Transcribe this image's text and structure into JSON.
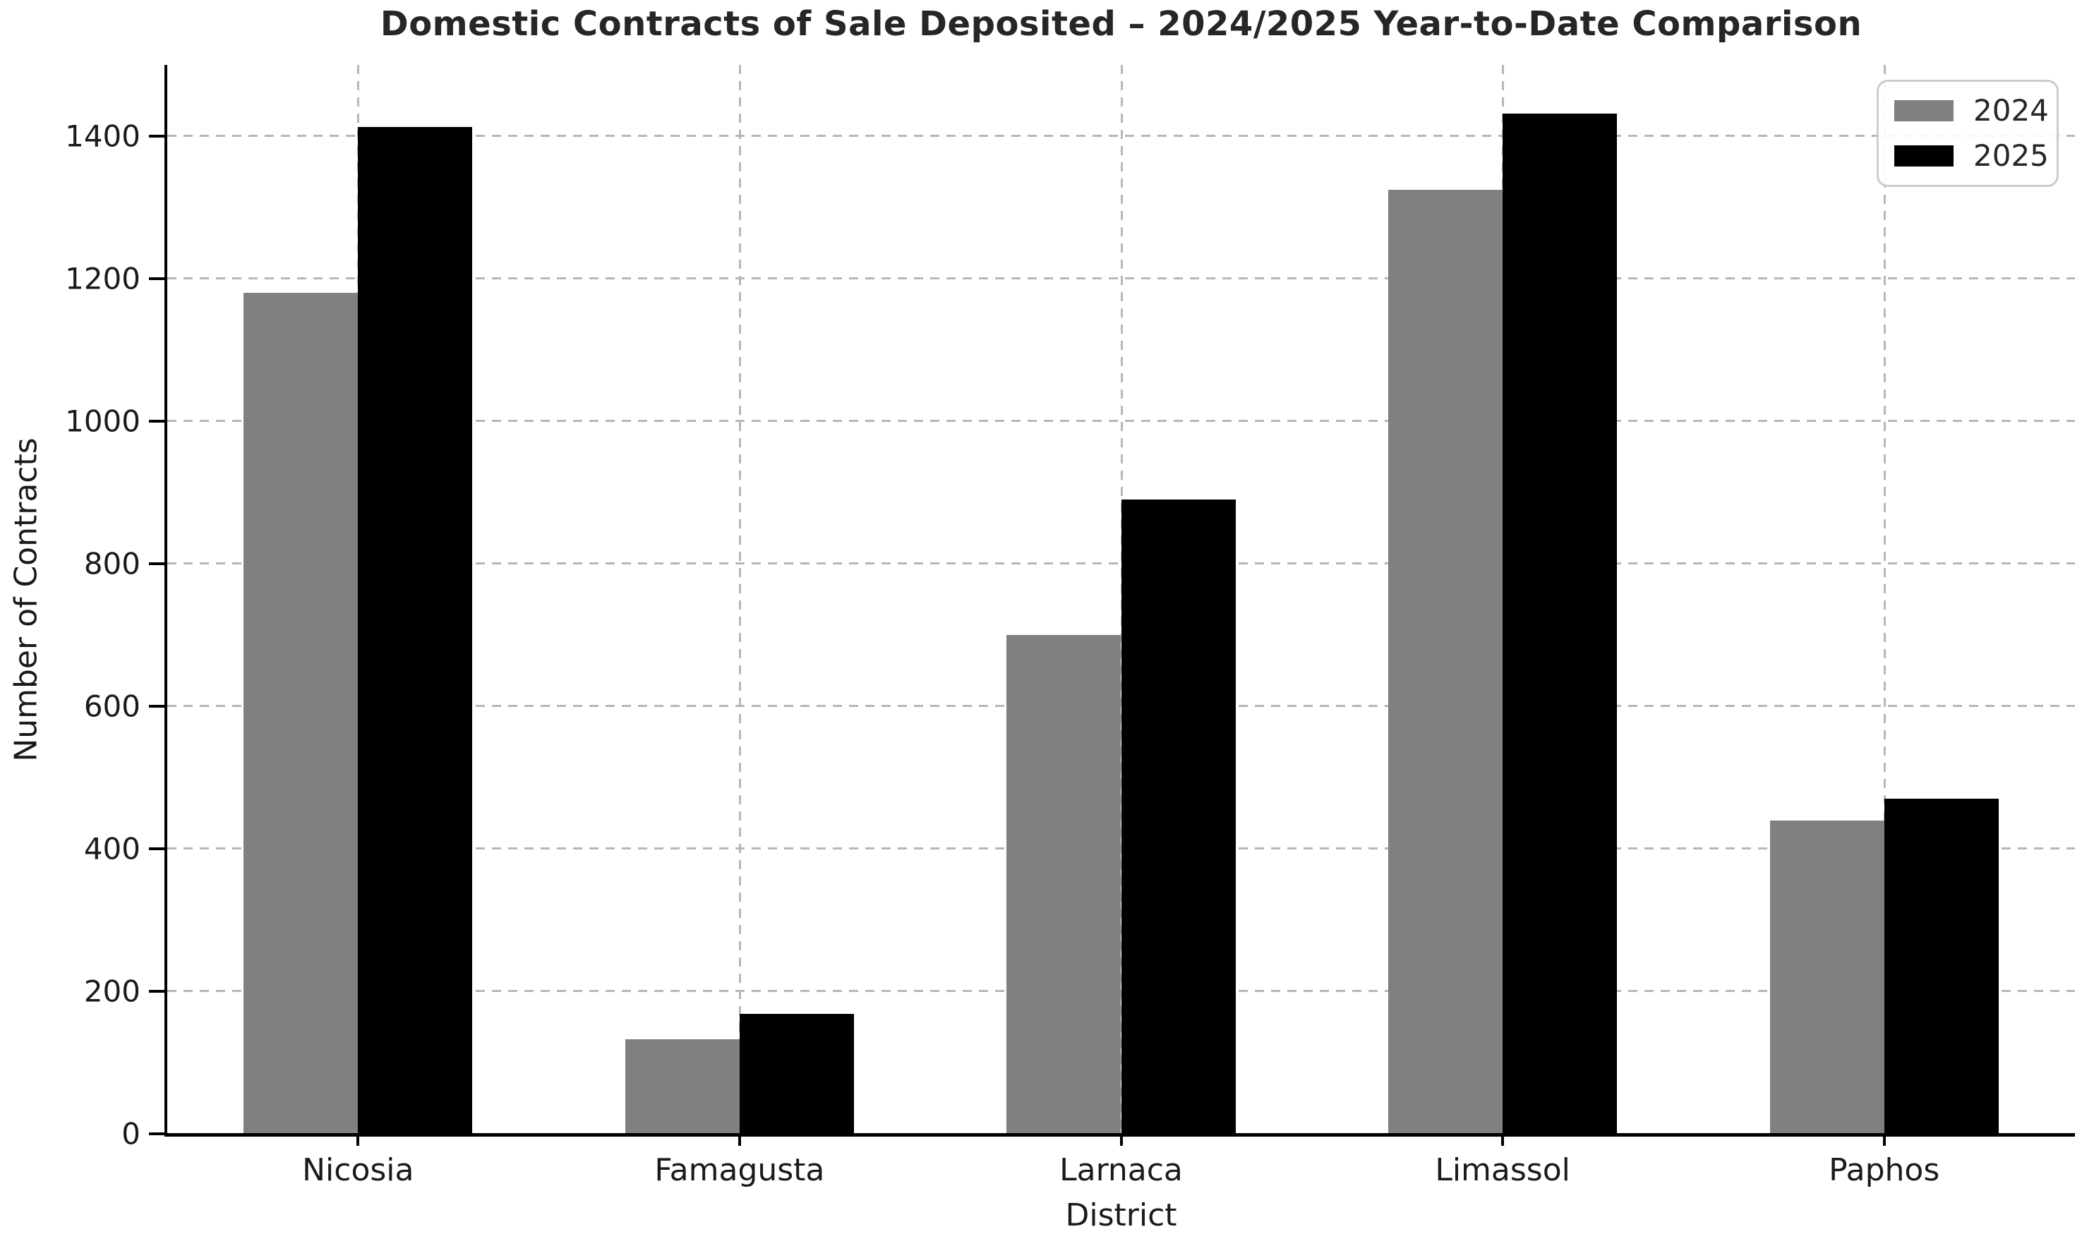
{
  "chart_title": "Domestic Contracts of Sale Deposited – 2024/2025 Year-to-Date Comparison",
  "chart_data": {
    "type": "bar",
    "title": "Domestic Contracts of Sale Deposited – 2024/2025 Year-to-Date Comparison",
    "categories": [
      "Nicosia",
      "Famagusta",
      "Larnaca",
      "Limassol",
      "Paphos"
    ],
    "series": [
      {
        "name": "2024",
        "color": "#808080",
        "values": [
          1180,
          133,
          700,
          1325,
          440
        ]
      },
      {
        "name": "2025",
        "color": "#000000",
        "values": [
          1413,
          168,
          890,
          1432,
          470
        ]
      }
    ],
    "xlabel": "District",
    "ylabel": "Number of Contracts",
    "ylim": [
      0,
      1500
    ],
    "yticks": [
      0,
      200,
      400,
      600,
      800,
      1000,
      1200,
      1400
    ],
    "grid": "dashed grid on both axes",
    "legend_position": "upper right",
    "bar_width_fraction": 0.3,
    "colors": {
      "grid": "#b7b7b7",
      "axis": "#000000",
      "text": "#262626",
      "background": "#ffffff"
    }
  }
}
